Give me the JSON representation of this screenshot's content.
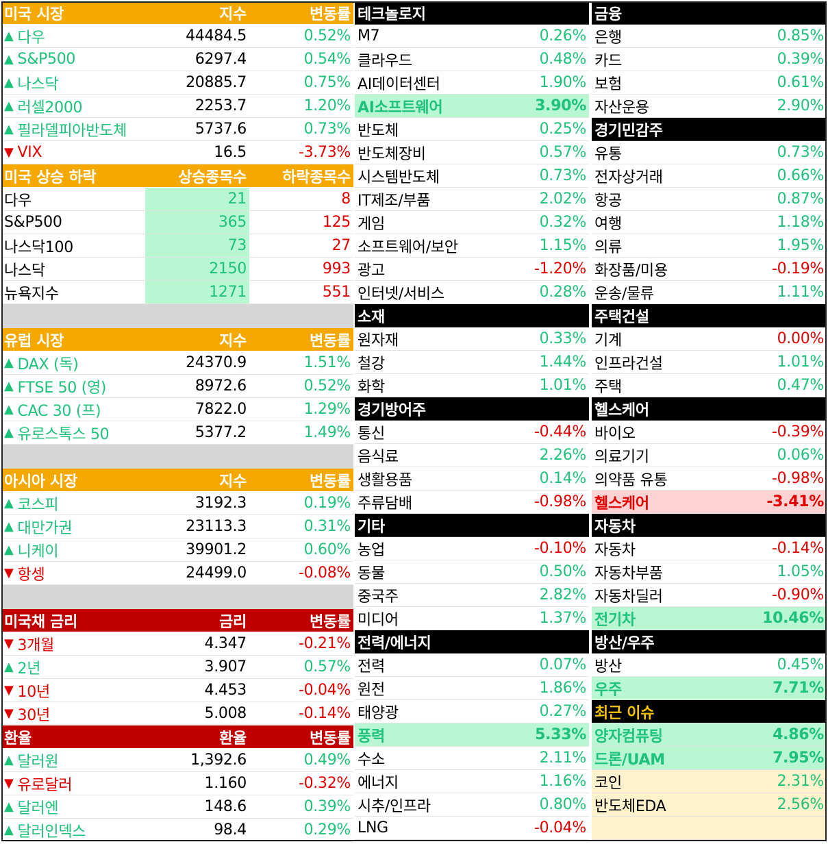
{
  "us_market": {
    "header": [
      "미국 시장",
      "지수",
      "변동률"
    ],
    "rows": [
      {
        "name": "다우",
        "value": "44484.5",
        "change": "0.52%",
        "dir": "up"
      },
      {
        "name": "S&P500",
        "value": "6297.4",
        "change": "0.54%",
        "dir": "up"
      },
      {
        "name": "나스닥",
        "value": "20885.7",
        "change": "0.75%",
        "dir": "up"
      },
      {
        "name": "러셀2000",
        "value": "2253.7",
        "change": "1.20%",
        "dir": "up"
      },
      {
        "name": "필라델피아반도체",
        "value": "5737.6",
        "change": "0.73%",
        "dir": "up"
      },
      {
        "name": "VIX",
        "value": "16.5",
        "change": "-3.73%",
        "dir": "down"
      }
    ]
  },
  "us_breadth": {
    "header": [
      "미국 상승 하락",
      "상승종목수",
      "하락종목수"
    ],
    "rows": [
      {
        "name": "다우",
        "up": "21",
        "down": "8"
      },
      {
        "name": "S&P500",
        "up": "365",
        "down": "125"
      },
      {
        "name": "나스닥100",
        "up": "73",
        "down": "27"
      },
      {
        "name": "나스닥",
        "up": "2150",
        "down": "993"
      },
      {
        "name": "뉴욕지수",
        "up": "1271",
        "down": "551"
      }
    ]
  },
  "eu_market": {
    "header": [
      "유럽 시장",
      "지수",
      "변동률"
    ],
    "rows": [
      {
        "name": "DAX (독)",
        "value": "24370.9",
        "change": "1.51%",
        "dir": "up"
      },
      {
        "name": "FTSE 50 (영)",
        "value": "8972.6",
        "change": "0.52%",
        "dir": "up"
      },
      {
        "name": "CAC 30 (프)",
        "value": "7822.0",
        "change": "1.29%",
        "dir": "up"
      },
      {
        "name": "유로스톡스 50",
        "value": "5377.2",
        "change": "1.49%",
        "dir": "up"
      }
    ]
  },
  "asia_market": {
    "header": [
      "아시아 시장",
      "지수",
      "변동률"
    ],
    "rows": [
      {
        "name": "코스피",
        "value": "3192.3",
        "change": "0.19%",
        "dir": "up"
      },
      {
        "name": "대만가권",
        "value": "23113.3",
        "change": "0.31%",
        "dir": "up"
      },
      {
        "name": "니케이",
        "value": "39901.2",
        "change": "0.60%",
        "dir": "up"
      },
      {
        "name": "항셍",
        "value": "24499.0",
        "change": "-0.08%",
        "dir": "down"
      }
    ]
  },
  "us_bond": {
    "header": [
      "미국채 금리",
      "금리",
      "변동률"
    ],
    "rows": [
      {
        "name": "3개월",
        "value": "4.347",
        "change": "-0.21%",
        "dir": "down"
      },
      {
        "name": "2년",
        "value": "3.907",
        "change": "0.57%",
        "dir": "up"
      },
      {
        "name": "10년",
        "value": "4.453",
        "change": "-0.04%",
        "dir": "down"
      },
      {
        "name": "30년",
        "value": "5.008",
        "change": "-0.14%",
        "dir": "down"
      }
    ]
  },
  "fx": {
    "header": [
      "환율",
      "환율",
      "변동률"
    ],
    "rows": [
      {
        "name": "달러원",
        "value": "1,392.6",
        "change": "0.49%",
        "dir": "up"
      },
      {
        "name": "유로달러",
        "value": "1.160",
        "change": "-0.32%",
        "dir": "down"
      },
      {
        "name": "달러엔",
        "value": "148.6",
        "change": "0.39%",
        "dir": "up"
      },
      {
        "name": "달러인덱스",
        "value": "98.4",
        "change": "0.29%",
        "dir": "up"
      }
    ]
  },
  "sectors_mid": [
    {
      "title": "테크놀로지",
      "rows": [
        {
          "name": "M7",
          "change": "0.26%",
          "dir": "up"
        },
        {
          "name": "클라우드",
          "change": "0.48%",
          "dir": "up"
        },
        {
          "name": "AI데이터센터",
          "change": "1.90%",
          "dir": "up"
        },
        {
          "name": "AI소프트웨어",
          "change": "3.90%",
          "dir": "up",
          "hl": "green"
        },
        {
          "name": "반도체",
          "change": "0.25%",
          "dir": "up"
        },
        {
          "name": "반도체장비",
          "change": "0.57%",
          "dir": "up"
        },
        {
          "name": "시스템반도체",
          "change": "0.73%",
          "dir": "up"
        },
        {
          "name": "IT제조/부품",
          "change": "2.02%",
          "dir": "up"
        },
        {
          "name": "게임",
          "change": "0.32%",
          "dir": "up"
        },
        {
          "name": "소프트웨어/보안",
          "change": "1.15%",
          "dir": "up"
        },
        {
          "name": "광고",
          "change": "-1.20%",
          "dir": "down"
        },
        {
          "name": "인터넷/서비스",
          "change": "0.28%",
          "dir": "up"
        }
      ]
    },
    {
      "title": "소재",
      "rows": [
        {
          "name": "원자재",
          "change": "0.33%",
          "dir": "up"
        },
        {
          "name": "철강",
          "change": "1.44%",
          "dir": "up"
        },
        {
          "name": "화학",
          "change": "1.01%",
          "dir": "up"
        }
      ]
    },
    {
      "title": "경기방어주",
      "rows": [
        {
          "name": "통신",
          "change": "-0.44%",
          "dir": "down"
        },
        {
          "name": "음식료",
          "change": "2.26%",
          "dir": "up"
        },
        {
          "name": "생활용품",
          "change": "0.14%",
          "dir": "up"
        },
        {
          "name": "주류담배",
          "change": "-0.98%",
          "dir": "down"
        }
      ]
    },
    {
      "title": "기타",
      "rows": [
        {
          "name": "농업",
          "change": "-0.10%",
          "dir": "down"
        },
        {
          "name": "동물",
          "change": "0.50%",
          "dir": "up"
        },
        {
          "name": "중국주",
          "change": "2.82%",
          "dir": "up"
        },
        {
          "name": "미디어",
          "change": "1.37%",
          "dir": "up"
        }
      ]
    },
    {
      "title": "전력/에너지",
      "rows": [
        {
          "name": "전력",
          "change": "0.07%",
          "dir": "up"
        },
        {
          "name": "원전",
          "change": "1.86%",
          "dir": "up"
        },
        {
          "name": "태양광",
          "change": "0.27%",
          "dir": "up"
        },
        {
          "name": "풍력",
          "change": "5.33%",
          "dir": "up",
          "hl": "green"
        },
        {
          "name": "수소",
          "change": "2.11%",
          "dir": "up"
        },
        {
          "name": "에너지",
          "change": "1.16%",
          "dir": "up"
        },
        {
          "name": "시추/인프라",
          "change": "0.80%",
          "dir": "up"
        },
        {
          "name": "LNG",
          "change": "-0.04%",
          "dir": "down"
        }
      ]
    }
  ],
  "sectors_right": [
    {
      "title": "금융",
      "rows": [
        {
          "name": "은행",
          "change": "0.85%",
          "dir": "up"
        },
        {
          "name": "카드",
          "change": "0.39%",
          "dir": "up"
        },
        {
          "name": "보험",
          "change": "0.61%",
          "dir": "up"
        },
        {
          "name": "자산운용",
          "change": "2.90%",
          "dir": "up"
        }
      ]
    },
    {
      "title": "경기민감주",
      "rows": [
        {
          "name": "유통",
          "change": "0.73%",
          "dir": "up"
        },
        {
          "name": "전자상거래",
          "change": "0.66%",
          "dir": "up"
        },
        {
          "name": "항공",
          "change": "0.87%",
          "dir": "up"
        },
        {
          "name": "여행",
          "change": "1.18%",
          "dir": "up"
        },
        {
          "name": "의류",
          "change": "1.95%",
          "dir": "up"
        },
        {
          "name": "화장품/미용",
          "change": "-0.19%",
          "dir": "down"
        },
        {
          "name": "운송/물류",
          "change": "1.11%",
          "dir": "up"
        }
      ]
    },
    {
      "title": "주택건설",
      "rows": [
        {
          "name": "기계",
          "change": "0.00%",
          "dir": "down"
        },
        {
          "name": "인프라건설",
          "change": "1.01%",
          "dir": "up"
        },
        {
          "name": "주택",
          "change": "0.47%",
          "dir": "up"
        }
      ]
    },
    {
      "title": "헬스케어",
      "rows": [
        {
          "name": "바이오",
          "change": "-0.39%",
          "dir": "down"
        },
        {
          "name": "의료기기",
          "change": "0.06%",
          "dir": "up"
        },
        {
          "name": "의약품 유통",
          "change": "-0.98%",
          "dir": "down"
        },
        {
          "name": "헬스케어",
          "change": "-3.41%",
          "dir": "down",
          "hl": "pink"
        }
      ]
    },
    {
      "title": "자동차",
      "rows": [
        {
          "name": "자동차",
          "change": "-0.14%",
          "dir": "down"
        },
        {
          "name": "자동차부품",
          "change": "1.05%",
          "dir": "up"
        },
        {
          "name": "자동차딜러",
          "change": "-0.90%",
          "dir": "down"
        },
        {
          "name": "전기차",
          "change": "10.46%",
          "dir": "up",
          "hl": "green"
        }
      ]
    },
    {
      "title": "방산/우주",
      "rows": [
        {
          "name": "방산",
          "change": "0.45%",
          "dir": "up"
        },
        {
          "name": "우주",
          "change": "7.71%",
          "dir": "up",
          "hl": "green"
        }
      ]
    },
    {
      "title": "최근 이슈",
      "title_style": "yellow",
      "rows": [
        {
          "name": "양자컴퓨팅",
          "change": "4.86%",
          "dir": "up",
          "hl": "green"
        },
        {
          "name": "드론/UAM",
          "change": "7.95%",
          "dir": "up",
          "hl": "green"
        },
        {
          "name": "코인",
          "change": "2.31%",
          "dir": "up",
          "hl": "cream"
        },
        {
          "name": "반도체EDA",
          "change": "2.56%",
          "dir": "up",
          "hl": "cream"
        },
        {
          "name": "",
          "change": "",
          "dir": "up",
          "hl": "cream"
        }
      ]
    }
  ],
  "arrows": {
    "up": "▲",
    "down": "▼"
  },
  "colors": {
    "up": "#1ec27a",
    "down": "#e10000",
    "header_orange": "#f5a800",
    "header_red": "#c00000",
    "header_black": "#000000",
    "highlight_green": "#b9f7d3",
    "highlight_pink": "#ffd3d3",
    "highlight_cream": "#fff2cc"
  }
}
